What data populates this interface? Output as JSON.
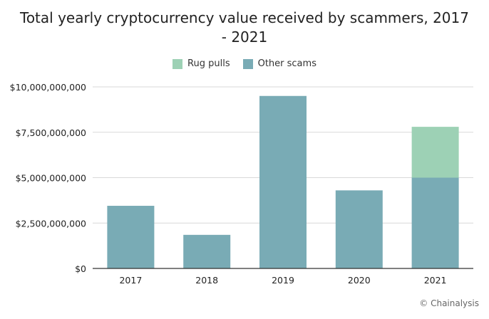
{
  "chart_data": {
    "type": "bar",
    "stacked": true,
    "title_lines": [
      "Total yearly cryptocurrency value received by scammers, 2017",
      "- 2021"
    ],
    "categories": [
      "2017",
      "2018",
      "2019",
      "2020",
      "2021"
    ],
    "series": [
      {
        "name": "Other scams",
        "color": "#79abb5",
        "values": [
          3450000000,
          1850000000,
          9500000000,
          4300000000,
          5000000000
        ]
      },
      {
        "name": "Rug pulls",
        "color": "#9dd1b5",
        "values": [
          0,
          0,
          0,
          0,
          2800000000
        ]
      }
    ],
    "legend_order": [
      "Rug pulls",
      "Other scams"
    ],
    "legend_position": "top-center",
    "ylim": [
      0,
      10000000000
    ],
    "yticks": [
      0,
      2500000000,
      5000000000,
      7500000000,
      10000000000
    ],
    "ytick_labels": [
      "$0",
      "$2,500,000,000",
      "$5,000,000,000",
      "$7,500,000,000",
      "$10,000,000,000"
    ],
    "grid": true,
    "grid_color": "#d9d9d9",
    "axis_color": "#333333"
  },
  "source": "© Chainalysis"
}
